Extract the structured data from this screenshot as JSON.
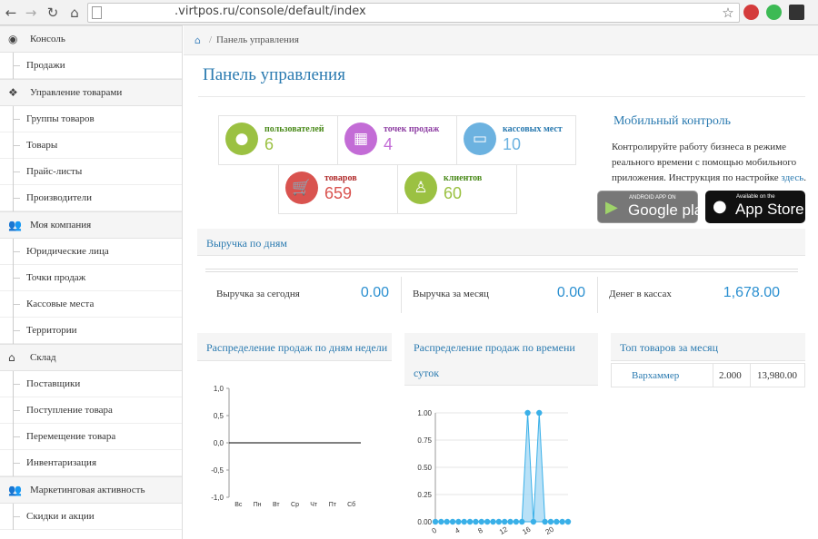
{
  "browser": {
    "url": ".virtpos.ru/console/default/index"
  },
  "sidebar": {
    "groups": [
      {
        "label": "Консоль",
        "icon": "dashboard-icon",
        "items": [
          "Продажи"
        ]
      },
      {
        "label": "Управление товарами",
        "icon": "dropbox-icon",
        "items": [
          "Группы товаров",
          "Товары",
          "Прайс-листы",
          "Производители"
        ]
      },
      {
        "label": "Моя компания",
        "icon": "users-icon",
        "items": [
          "Юридические лица",
          "Точки продаж",
          "Кассовые места",
          "Территории"
        ]
      },
      {
        "label": "Склад",
        "icon": "home-icon",
        "items": [
          "Поставщики",
          "Поступление товара",
          "Перемещение товара",
          "Инвентаризация"
        ]
      },
      {
        "label": "Маркетинговая активность",
        "icon": "users-icon",
        "items": [
          "Скидки и акции"
        ]
      }
    ]
  },
  "breadcrumb": {
    "current": "Панель управления"
  },
  "page": {
    "title": "Панель управления"
  },
  "stats": [
    {
      "label": "пользователей",
      "value": "6",
      "color": "#9bc142",
      "label_color": "#4a8a1a",
      "icon": "user-icon"
    },
    {
      "label": "точек продаж",
      "value": "4",
      "color": "#c36cd6",
      "label_color": "#8e3fa3",
      "icon": "building-icon"
    },
    {
      "label": "кассовых мест",
      "value": "10",
      "color": "#6cb2e0",
      "label_color": "#2a7ab0",
      "icon": "desktop-icon"
    },
    {
      "label": "товаров",
      "value": "659",
      "color": "#d9534f",
      "label_color": "#b02a2a",
      "icon": "cart-icon"
    },
    {
      "label": "клиентов",
      "value": "60",
      "color": "#9bc142",
      "label_color": "#4a8a1a",
      "icon": "male-icon"
    }
  ],
  "mobile": {
    "title": "Мобильный контроль",
    "text": "Контролируйте работу бизнеса в режиме реального времени с помощью мобильного приложения. Инструкция по настройке ",
    "link": "здесь",
    "tail": ".",
    "google_small": "ANDROID APP ON",
    "google_big": "Google play",
    "apple_small": "Available on the",
    "apple_big": "App Store"
  },
  "revenue": {
    "title": "Выручка по дням",
    "today_label": "Выручка за сегодня",
    "today_value": "0.00",
    "month_label": "Выручка за месяц",
    "month_value": "0.00",
    "cash_label": "Денег в кассах",
    "cash_value": "1,678.00"
  },
  "weekday_panel": {
    "title": "Распределение продаж по дням недели"
  },
  "hour_panel": {
    "title_line1": "Распределение продаж по времени",
    "title_line2": "суток"
  },
  "top_panel": {
    "title": "Топ товаров за месяц",
    "rows": [
      {
        "name": "Вархаммер",
        "qty": "2.000",
        "sum": "13,980.00"
      }
    ]
  },
  "chart_data": [
    {
      "type": "line",
      "categories": [
        "Вс",
        "Пн",
        "Вт",
        "Ср",
        "Чт",
        "Пт",
        "Сб"
      ],
      "series": [
        {
          "values": [
            0,
            0,
            0,
            0,
            0,
            0,
            0
          ]
        }
      ],
      "yticks": [
        "1,0",
        "0,5",
        "0,0",
        "-0,5",
        "-1,0"
      ],
      "ylim": [
        -1,
        1
      ],
      "color": "#000000"
    },
    {
      "type": "area",
      "x": [
        0,
        1,
        2,
        3,
        4,
        5,
        6,
        7,
        8,
        9,
        10,
        11,
        12,
        13,
        14,
        15,
        16,
        17,
        18,
        19,
        20,
        21,
        22,
        23
      ],
      "series": [
        {
          "values": [
            0,
            0,
            0,
            0,
            0,
            0,
            0,
            0,
            0,
            0,
            0,
            0,
            0,
            0,
            0,
            0,
            1,
            0,
            1,
            0,
            0,
            0,
            0,
            0
          ]
        }
      ],
      "xticks": [
        "0",
        "4",
        "8",
        "12",
        "16",
        "20"
      ],
      "yticks": [
        "1.00",
        "0.75",
        "0.50",
        "0.25",
        "0.00"
      ],
      "ylim": [
        0,
        1
      ],
      "color": "#3ab0e8",
      "fill": "#a8daf5"
    }
  ]
}
